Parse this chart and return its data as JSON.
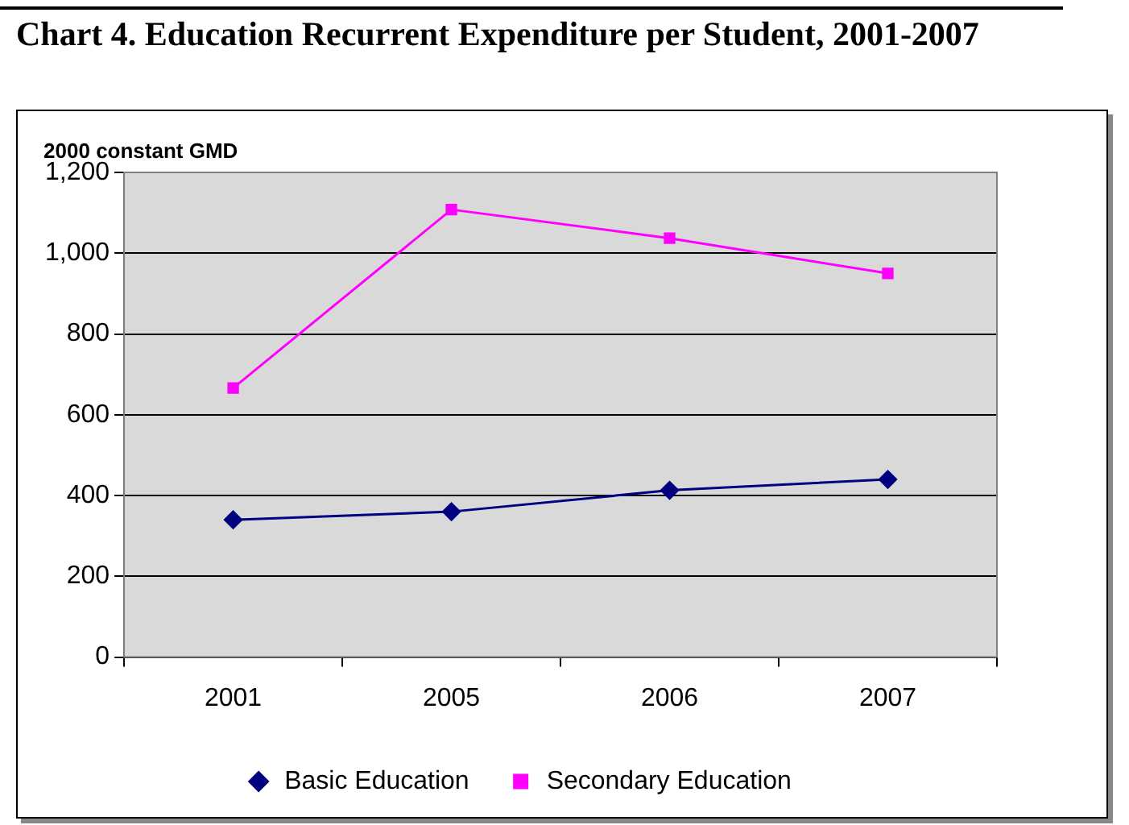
{
  "chart_data": {
    "type": "line",
    "title": "Chart 4.  Education Recurrent Expenditure per Student, 2001-2007",
    "ylabel": "2000 constant GMD",
    "categories": [
      "2001",
      "2005",
      "2006",
      "2007"
    ],
    "series": [
      {
        "name": "Basic Education",
        "color": "#000080",
        "marker": "diamond",
        "values": [
          340,
          360,
          413,
          440
        ]
      },
      {
        "name": "Secondary Education",
        "color": "#ff00ff",
        "marker": "square",
        "values": [
          666,
          1108,
          1037,
          950
        ]
      }
    ],
    "ylim": [
      0,
      1200
    ],
    "yticks": [
      {
        "value": 0,
        "label": "0"
      },
      {
        "value": 200,
        "label": "200"
      },
      {
        "value": 400,
        "label": "400"
      },
      {
        "value": 600,
        "label": "600"
      },
      {
        "value": 800,
        "label": "800"
      },
      {
        "value": 1000,
        "label": "1,000"
      },
      {
        "value": 1200,
        "label": "1,200"
      }
    ],
    "grid": "y",
    "legend": "bottom"
  }
}
